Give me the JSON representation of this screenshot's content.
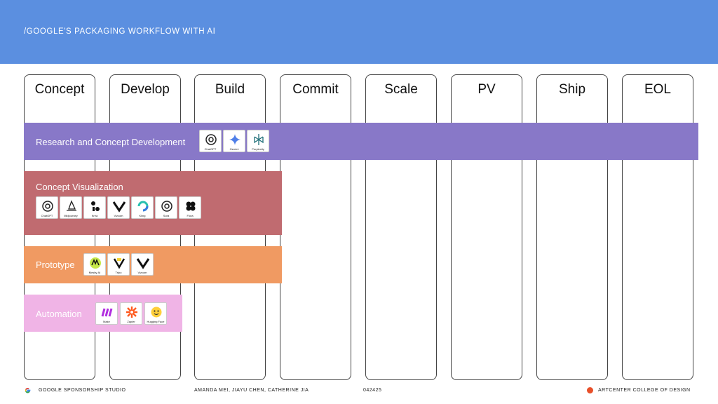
{
  "header": {
    "title": "/GOOGLE'S PACKAGING WORKFLOW WITH AI"
  },
  "stages": [
    "Concept",
    "Develop",
    "Build",
    "Commit",
    "Scale",
    "PV",
    "Ship",
    "EOL"
  ],
  "bands": {
    "research": {
      "label": "Research and Concept Development",
      "color": "#8878c8",
      "tools": [
        "ChatGPT",
        "Gemini",
        "Perplexity"
      ]
    },
    "visualization": {
      "label": "Concept Visualization",
      "color": "#c06b70",
      "tools": [
        "ChatGPT",
        "Midjourney",
        "Krea",
        "Vizcom",
        "Kling",
        "Sora",
        "Flora"
      ]
    },
    "prototype": {
      "label": "Prototype",
      "color": "#f09a62",
      "tools": [
        "Meshy AI",
        "Tripo",
        "Vizcom"
      ]
    },
    "automation": {
      "label": "Automation",
      "color": "#f0b4e6",
      "tools": [
        "Make",
        "Zapier",
        "Hugging Face"
      ]
    }
  },
  "footer": {
    "studio": "GOOGLE SPONSORSHIP STUDIO",
    "authors": "AMANDA MEI, JIAYU CHEN, CATHERINE JIA",
    "code": "042425",
    "school": "ARTCENTER COLLEGE OF DESIGN",
    "dot_color": "#e8502a"
  }
}
